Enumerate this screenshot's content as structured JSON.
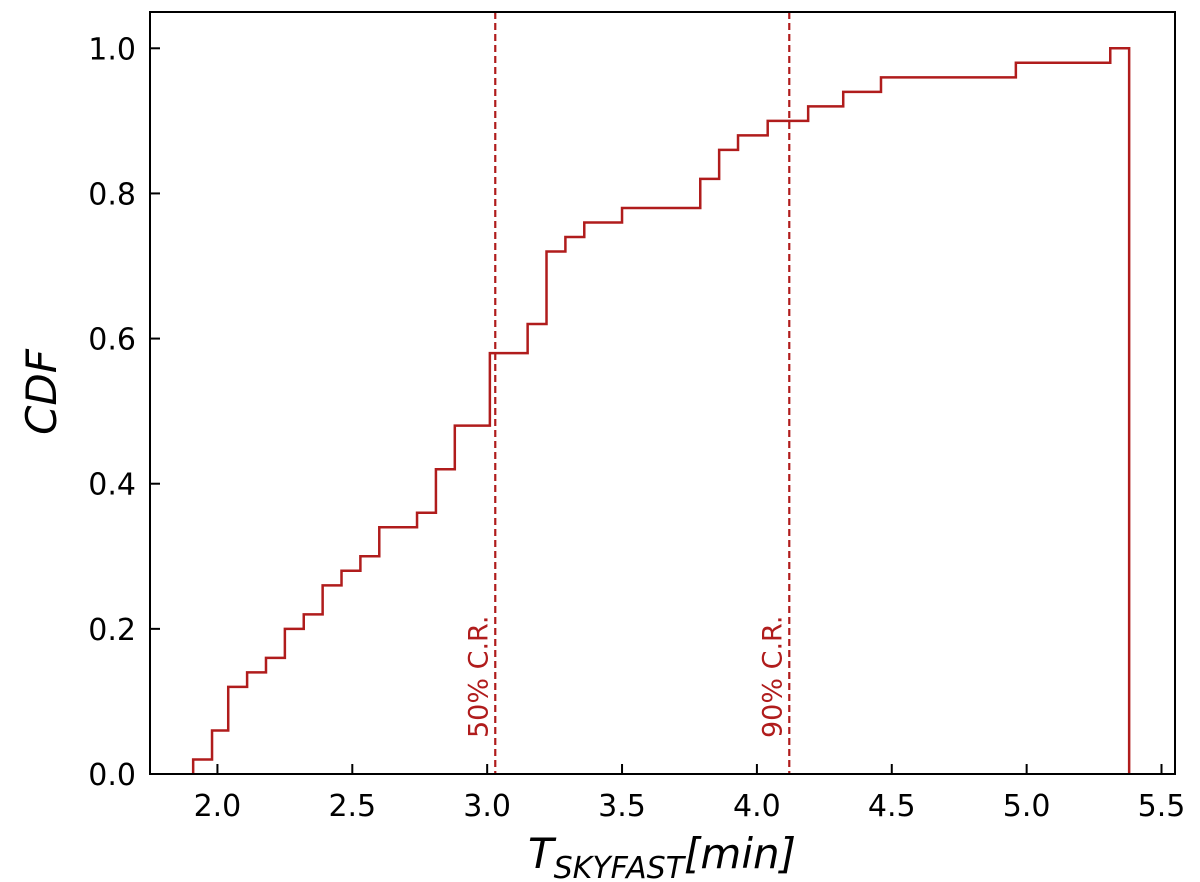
{
  "chart_data": {
    "type": "line",
    "subtype": "step-cdf",
    "title": "",
    "xlabel": {
      "main": "T",
      "subscript": "SKYFAST",
      "unit": "[min]"
    },
    "ylabel": "CDF",
    "xlim": [
      1.75,
      5.55
    ],
    "ylim": [
      0.0,
      1.05
    ],
    "xticks": [
      2.0,
      2.5,
      3.0,
      3.5,
      4.0,
      4.5,
      5.0,
      5.5
    ],
    "xtick_labels": [
      "2.0",
      "2.5",
      "3.0",
      "3.5",
      "4.0",
      "4.5",
      "5.0",
      "5.5"
    ],
    "yticks": [
      0.0,
      0.2,
      0.4,
      0.6,
      0.8,
      1.0
    ],
    "ytick_labels": [
      "0.0",
      "0.2",
      "0.4",
      "0.6",
      "0.8",
      "1.0"
    ],
    "grid": false,
    "color": "#b01c1c",
    "series": [
      {
        "x": [
          1.91,
          1.98,
          2.04,
          2.11,
          2.18,
          2.25,
          2.32,
          2.39,
          2.46,
          2.53,
          2.6,
          2.74,
          2.81,
          2.88,
          3.01,
          3.15,
          3.22,
          3.29,
          3.36,
          3.5,
          3.79,
          3.86,
          3.93,
          4.04,
          4.19,
          4.32,
          4.46,
          4.96,
          5.31,
          5.38
        ],
        "y": [
          0.02,
          0.06,
          0.12,
          0.14,
          0.16,
          0.2,
          0.22,
          0.26,
          0.28,
          0.3,
          0.34,
          0.36,
          0.42,
          0.48,
          0.58,
          0.62,
          0.72,
          0.74,
          0.76,
          0.78,
          0.82,
          0.86,
          0.88,
          0.9,
          0.92,
          0.94,
          0.96,
          0.98,
          1.0,
          0.0
        ]
      }
    ],
    "vlines": [
      {
        "x": 3.03,
        "label": "50% C.R.",
        "style": "dashed"
      },
      {
        "x": 4.12,
        "label": "90% C.R.",
        "style": "dashed"
      }
    ]
  }
}
